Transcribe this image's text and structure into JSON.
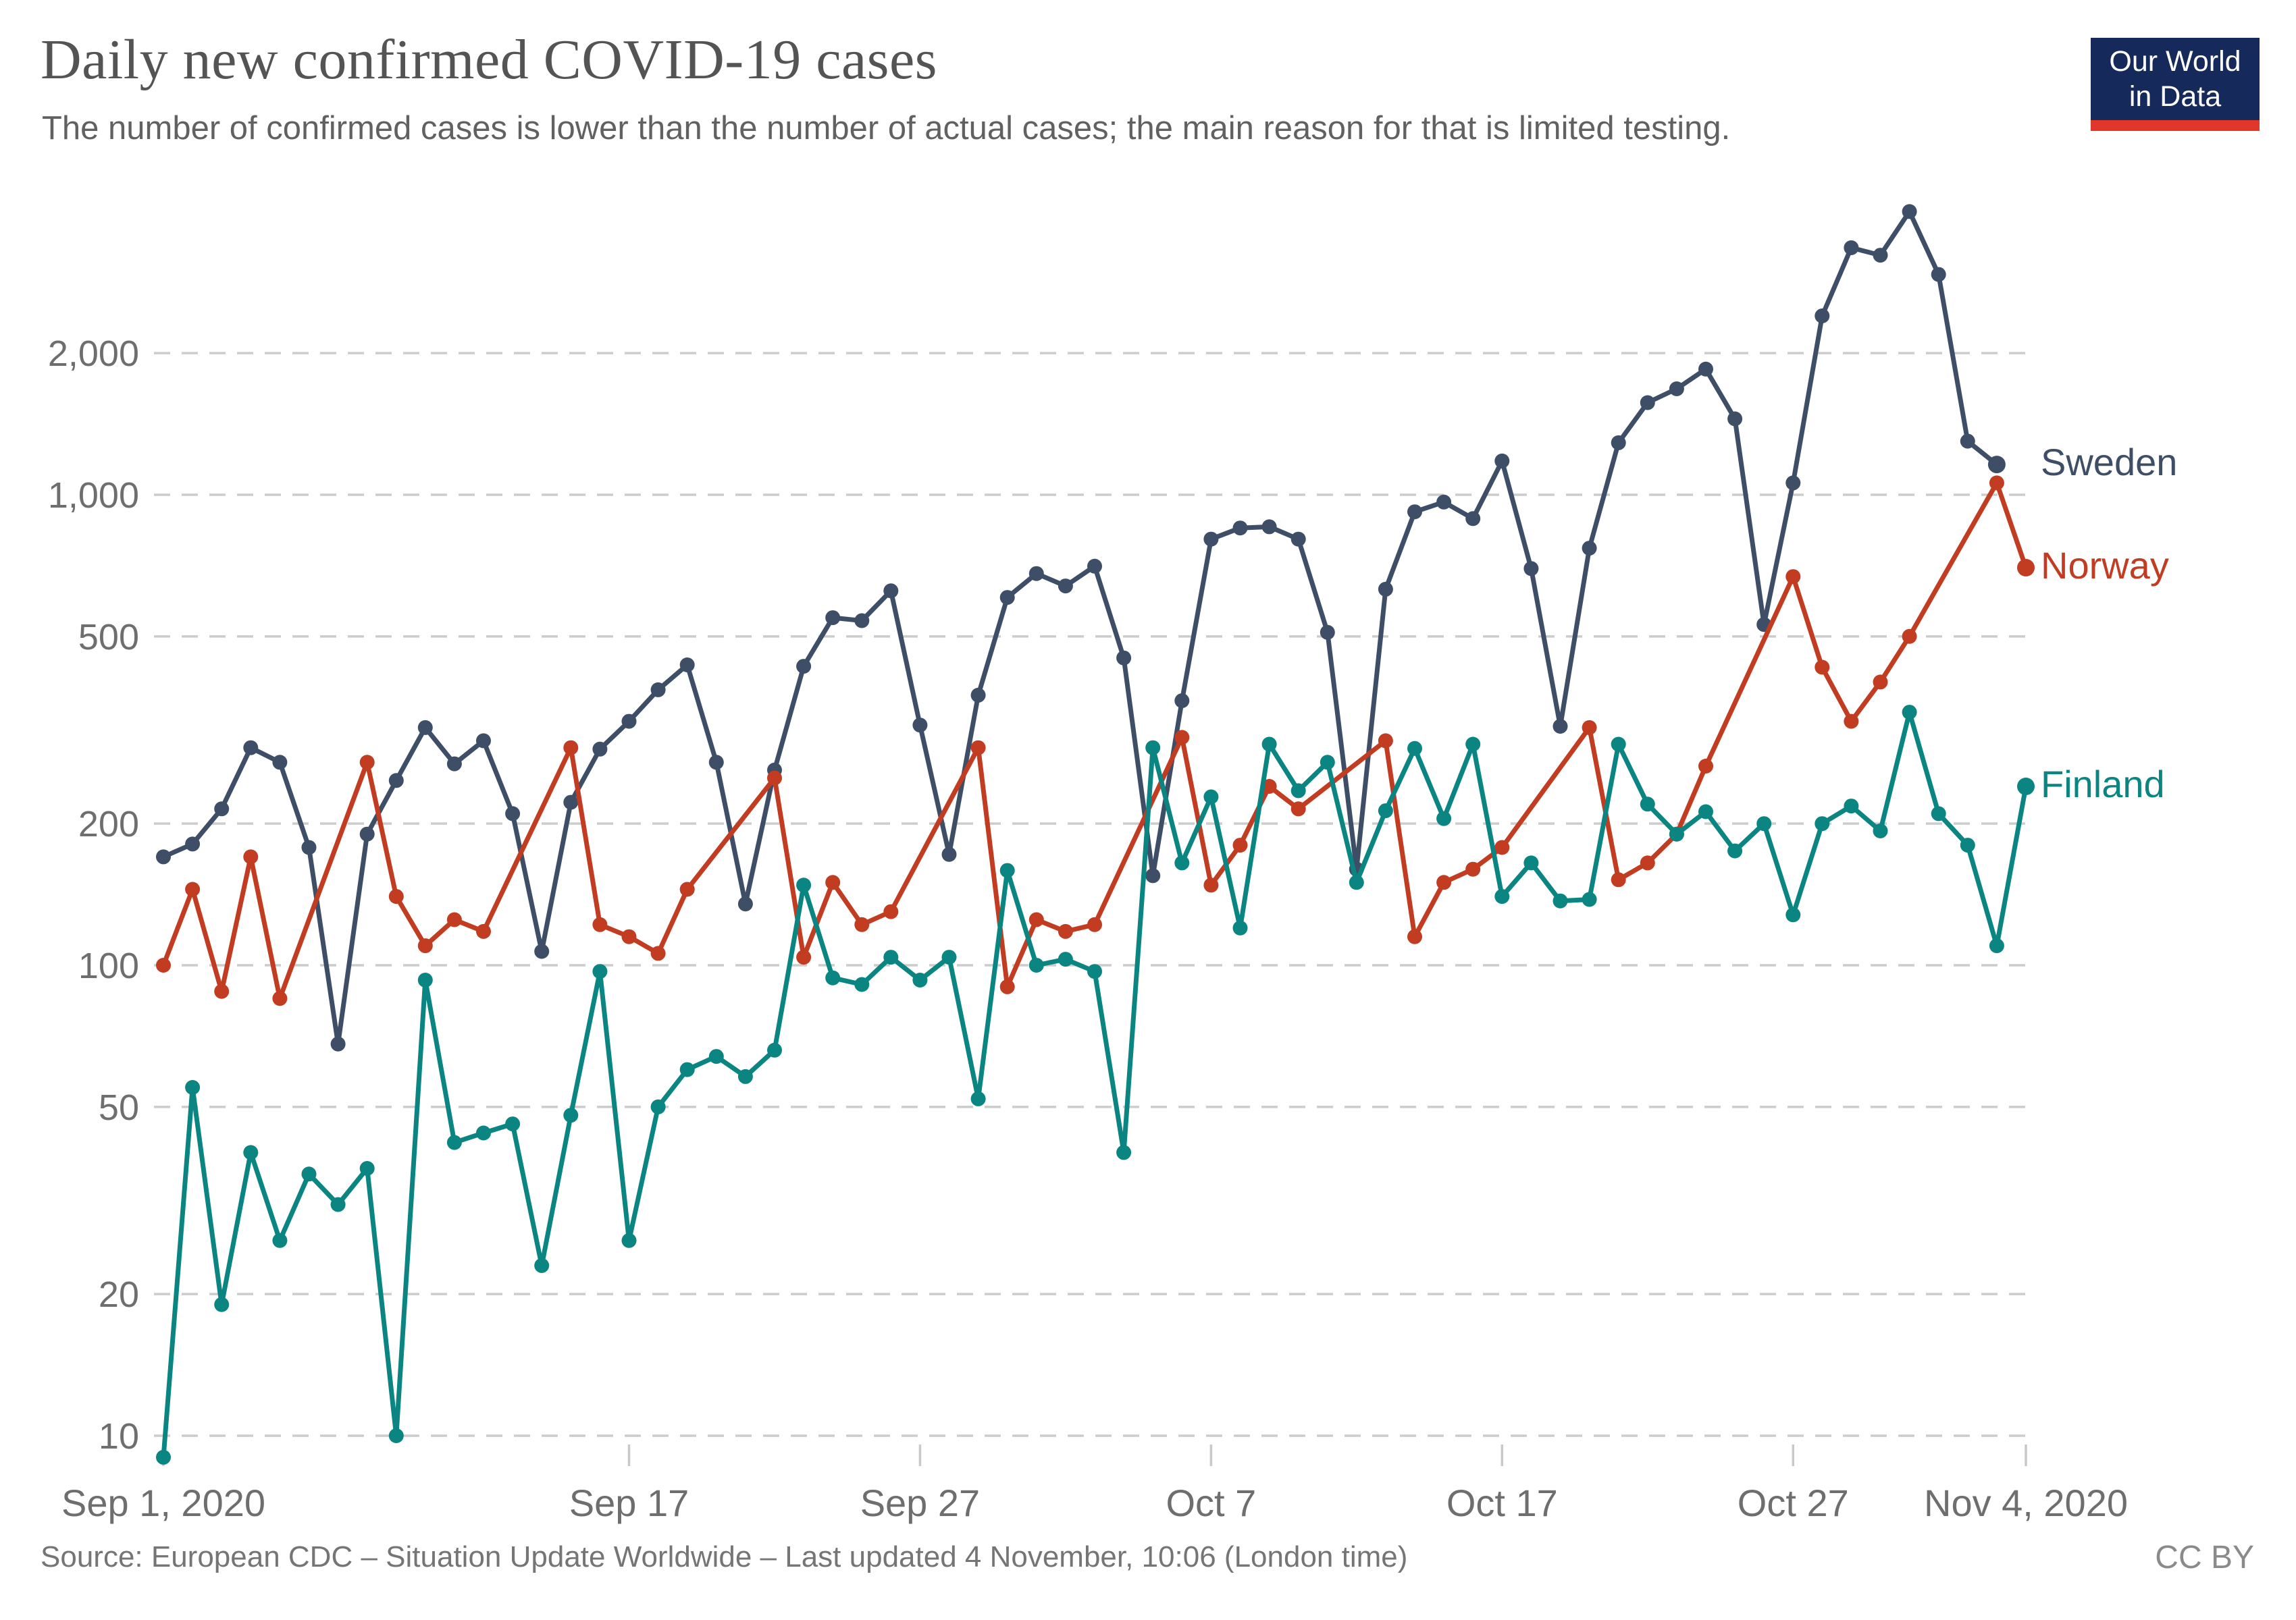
{
  "header": {
    "title": "Daily new confirmed COVID-19 cases",
    "subtitle": "The number of confirmed cases is lower than the number of actual cases; the main reason for that is limited testing."
  },
  "logo": {
    "line1": "Our World",
    "line2": "in Data",
    "bg_color": "#16295b",
    "bar_color": "#e0372a"
  },
  "footer": {
    "source": "Source: European CDC – Situation Update Worldwide – Last updated 4 November, 10:06 (London time)",
    "license": "CC BY"
  },
  "chart_data": {
    "type": "line",
    "y_scale": "log",
    "grid": true,
    "legend_position": "right-of-line-ends",
    "x": [
      "Sep 1",
      "Sep 2",
      "Sep 3",
      "Sep 4",
      "Sep 5",
      "Sep 6",
      "Sep 7",
      "Sep 8",
      "Sep 9",
      "Sep 10",
      "Sep 11",
      "Sep 12",
      "Sep 13",
      "Sep 14",
      "Sep 15",
      "Sep 16",
      "Sep 17",
      "Sep 18",
      "Sep 19",
      "Sep 20",
      "Sep 21",
      "Sep 22",
      "Sep 23",
      "Sep 24",
      "Sep 25",
      "Sep 26",
      "Sep 27",
      "Sep 28",
      "Sep 29",
      "Sep 30",
      "Oct 1",
      "Oct 2",
      "Oct 3",
      "Oct 4",
      "Oct 5",
      "Oct 6",
      "Oct 7",
      "Oct 8",
      "Oct 9",
      "Oct 10",
      "Oct 11",
      "Oct 12",
      "Oct 13",
      "Oct 14",
      "Oct 15",
      "Oct 16",
      "Oct 17",
      "Oct 18",
      "Oct 19",
      "Oct 20",
      "Oct 21",
      "Oct 22",
      "Oct 23",
      "Oct 24",
      "Oct 25",
      "Oct 26",
      "Oct 27",
      "Oct 28",
      "Oct 29",
      "Oct 30",
      "Oct 31",
      "Nov 1",
      "Nov 2",
      "Nov 3",
      "Nov 4"
    ],
    "series": [
      {
        "id": "sweden",
        "name": "Sweden",
        "color": "#3d4e66",
        "values": [
          170,
          181,
          215,
          290,
          270,
          178,
          68,
          190,
          247,
          320,
          268,
          300,
          210,
          107,
          222,
          288,
          330,
          385,
          435,
          270,
          135,
          260,
          432,
          548,
          540,
          625,
          324,
          172,
          375,
          605,
          680,
          640,
          705,
          450,
          155,
          365,
          805,
          850,
          855,
          805,
          510,
          160,
          630,
          920,
          965,
          890,
          1180,
          697,
          322,
          770,
          1290,
          1570,
          1680,
          1850,
          1450,
          530,
          1060,
          2400,
          3350,
          3230,
          4000,
          2940,
          1300,
          1160,
          null
        ]
      },
      {
        "id": "norway",
        "name": "Norway",
        "color": "#c13c21",
        "values": [
          100,
          145,
          88,
          170,
          85,
          null,
          null,
          270,
          140,
          110,
          125,
          118,
          null,
          null,
          290,
          122,
          115,
          106,
          145,
          null,
          null,
          250,
          104,
          150,
          122,
          130,
          null,
          null,
          290,
          90,
          125,
          118,
          122,
          null,
          null,
          305,
          148,
          180,
          240,
          215,
          null,
          null,
          300,
          115,
          150,
          160,
          178,
          null,
          null,
          320,
          152,
          165,
          190,
          265,
          null,
          null,
          670,
          430,
          330,
          400,
          500,
          null,
          null,
          1060,
          700
        ]
      },
      {
        "id": "finland",
        "name": "Finland",
        "color": "#0a8581",
        "values": [
          9,
          55,
          19,
          40,
          26,
          36,
          31,
          37,
          10,
          93,
          42,
          44,
          46,
          23,
          48,
          97,
          26,
          50,
          60,
          64,
          58,
          66,
          148,
          94,
          91,
          104,
          93,
          104,
          52,
          159,
          100,
          103,
          97,
          40,
          290,
          165,
          228,
          120,
          295,
          235,
          270,
          150,
          213,
          289,
          205,
          295,
          140,
          165,
          137,
          138,
          295,
          220,
          190,
          212,
          175,
          200,
          128,
          200,
          218,
          193,
          345,
          210,
          180,
          110,
          240
        ]
      }
    ],
    "y_axis": {
      "ticks": [
        {
          "v": 10,
          "label": "10"
        },
        {
          "v": 20,
          "label": "20"
        },
        {
          "v": 50,
          "label": "50"
        },
        {
          "v": 100,
          "label": "100"
        },
        {
          "v": 200,
          "label": "200"
        },
        {
          "v": 500,
          "label": "500"
        },
        {
          "v": 1000,
          "label": "1,000"
        },
        {
          "v": 2000,
          "label": "2,000"
        }
      ]
    },
    "x_axis": {
      "ticks": [
        {
          "i": 0,
          "label": "Sep 1, 2020"
        },
        {
          "i": 16,
          "label": "Sep 17"
        },
        {
          "i": 26,
          "label": "Sep 27"
        },
        {
          "i": 36,
          "label": "Oct 7"
        },
        {
          "i": 46,
          "label": "Oct 17"
        },
        {
          "i": 56,
          "label": "Oct 27"
        },
        {
          "i": 64,
          "label": "Nov 4, 2020"
        }
      ]
    }
  }
}
